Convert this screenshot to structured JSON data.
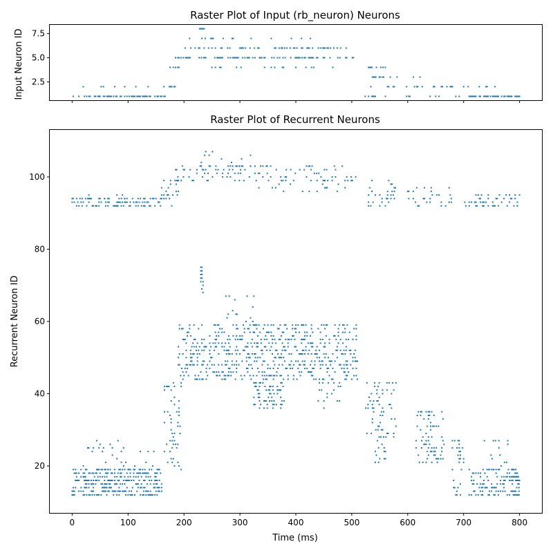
{
  "figure": {
    "background": "#ffffff",
    "marker_color": "#1f77b4"
  },
  "chart_data": [
    {
      "type": "scatter",
      "title": "Raster Plot of Input (rb_neuron) Neurons",
      "xlabel": "",
      "ylabel": "Input Neuron ID",
      "xlim": [
        -40,
        840
      ],
      "ylim": [
        0.6,
        8.4
      ],
      "xticks": [
        0,
        100,
        200,
        300,
        400,
        500,
        600,
        700,
        800
      ],
      "xtick_labels_visible": false,
      "yticks": [
        2.5,
        5.0,
        7.5
      ],
      "ytick_labels": [
        "2.5",
        "5.0",
        "7.5"
      ],
      "grid": false,
      "spike_groups": [
        {
          "neuron": 1,
          "t_start": 0,
          "t_end": 170,
          "density": 0.55
        },
        {
          "neuron": 2,
          "t_start": 20,
          "t_end": 150,
          "density": 0.18
        },
        {
          "neuron": 1,
          "t_start": 520,
          "t_end": 800,
          "density": 0.2
        },
        {
          "neuron": 2,
          "t_start": 530,
          "t_end": 680,
          "density": 0.22
        },
        {
          "neuron": 2,
          "t_start": 690,
          "t_end": 780,
          "density": 0.08
        },
        {
          "neuron": 2,
          "t_start": 160,
          "t_end": 185,
          "density": 0.5
        },
        {
          "neuron": 3,
          "t_start": 165,
          "t_end": 190,
          "density": 0.3
        },
        {
          "neuron": 4,
          "t_start": 175,
          "t_end": 192,
          "density": 0.3
        },
        {
          "neuron": 5,
          "t_start": 185,
          "t_end": 510,
          "density": 0.45
        },
        {
          "neuron": 6,
          "t_start": 190,
          "t_end": 490,
          "density": 0.35
        },
        {
          "neuron": 7,
          "t_start": 210,
          "t_end": 430,
          "density": 0.08
        },
        {
          "neuron": 8,
          "t_start": 228,
          "t_end": 236,
          "density": 0.6
        },
        {
          "neuron": 4,
          "t_start": 240,
          "t_end": 490,
          "density": 0.12
        },
        {
          "neuron": 3,
          "t_start": 525,
          "t_end": 590,
          "density": 0.4
        },
        {
          "neuron": 4,
          "t_start": 530,
          "t_end": 560,
          "density": 0.3
        },
        {
          "neuron": 3,
          "t_start": 610,
          "t_end": 630,
          "density": 0.2
        },
        {
          "neuron": 1,
          "t_start": 710,
          "t_end": 800,
          "density": 0.6
        }
      ]
    },
    {
      "type": "scatter",
      "title": "Raster Plot of Recurrent Neurons",
      "xlabel": "Time (ms)",
      "ylabel": "Recurrent Neuron ID",
      "xlim": [
        -40,
        840
      ],
      "ylim": [
        7,
        113
      ],
      "xticks": [
        0,
        100,
        200,
        300,
        400,
        500,
        600,
        700,
        800
      ],
      "xtick_labels": [
        "0",
        "100",
        "200",
        "300",
        "400",
        "500",
        "600",
        "700",
        "800"
      ],
      "yticks": [
        20,
        40,
        60,
        80,
        100
      ],
      "ytick_labels": [
        "20",
        "40",
        "60",
        "80",
        "100"
      ],
      "grid": false,
      "spike_groups": [
        {
          "n_min": 92,
          "n_max": 94,
          "t_start": 0,
          "t_end": 160,
          "density": 0.3
        },
        {
          "n_min": 94,
          "n_max": 95,
          "t_start": 30,
          "t_end": 95,
          "density": 0.15
        },
        {
          "n_min": 92,
          "n_max": 93,
          "t_start": 520,
          "t_end": 800,
          "density": 0.12
        },
        {
          "n_min": 94,
          "n_max": 99,
          "t_start": 530,
          "t_end": 580,
          "density": 0.15
        },
        {
          "n_min": 94,
          "n_max": 97,
          "t_start": 600,
          "t_end": 680,
          "density": 0.1
        },
        {
          "n_min": 92,
          "n_max": 95,
          "t_start": 710,
          "t_end": 800,
          "density": 0.15
        },
        {
          "n_min": 92,
          "n_max": 99,
          "t_start": 160,
          "t_end": 190,
          "density": 0.15
        },
        {
          "n_min": 99,
          "n_max": 103,
          "t_start": 185,
          "t_end": 510,
          "density": 0.14
        },
        {
          "n_min": 103,
          "n_max": 107,
          "t_start": 225,
          "t_end": 320,
          "density": 0.06
        },
        {
          "n_min": 96,
          "n_max": 99,
          "t_start": 320,
          "t_end": 500,
          "density": 0.06
        },
        {
          "n_min": 12,
          "n_max": 19,
          "t_start": 0,
          "t_end": 160,
          "density": 0.38
        },
        {
          "n_min": 19,
          "n_max": 27,
          "t_start": 20,
          "t_end": 100,
          "density": 0.06
        },
        {
          "n_min": 19,
          "n_max": 25,
          "t_start": 110,
          "t_end": 150,
          "density": 0.04
        },
        {
          "n_min": 19,
          "n_max": 43,
          "t_start": 165,
          "t_end": 195,
          "density": 0.12
        },
        {
          "n_min": 44,
          "n_max": 59,
          "t_start": 190,
          "t_end": 510,
          "density": 0.22
        },
        {
          "n_min": 60,
          "n_max": 67,
          "t_start": 275,
          "t_end": 325,
          "density": 0.07
        },
        {
          "n_min": 68,
          "n_max": 75,
          "t_start": 230,
          "t_end": 234,
          "density": 0.6
        },
        {
          "n_min": 36,
          "n_max": 43,
          "t_start": 325,
          "t_end": 380,
          "density": 0.25
        },
        {
          "n_min": 36,
          "n_max": 43,
          "t_start": 440,
          "t_end": 480,
          "density": 0.06
        },
        {
          "n_min": 28,
          "n_max": 43,
          "t_start": 525,
          "t_end": 580,
          "density": 0.14
        },
        {
          "n_min": 21,
          "n_max": 28,
          "t_start": 540,
          "t_end": 560,
          "density": 0.2
        },
        {
          "n_min": 21,
          "n_max": 35,
          "t_start": 615,
          "t_end": 665,
          "density": 0.16
        },
        {
          "n_min": 12,
          "n_max": 27,
          "t_start": 680,
          "t_end": 700,
          "density": 0.16
        },
        {
          "n_min": 12,
          "n_max": 19,
          "t_start": 710,
          "t_end": 800,
          "density": 0.26
        },
        {
          "n_min": 19,
          "n_max": 27,
          "t_start": 735,
          "t_end": 780,
          "density": 0.06
        },
        {
          "n_min": 12,
          "n_max": 19,
          "t_start": 785,
          "t_end": 800,
          "density": 0.5
        }
      ]
    }
  ]
}
